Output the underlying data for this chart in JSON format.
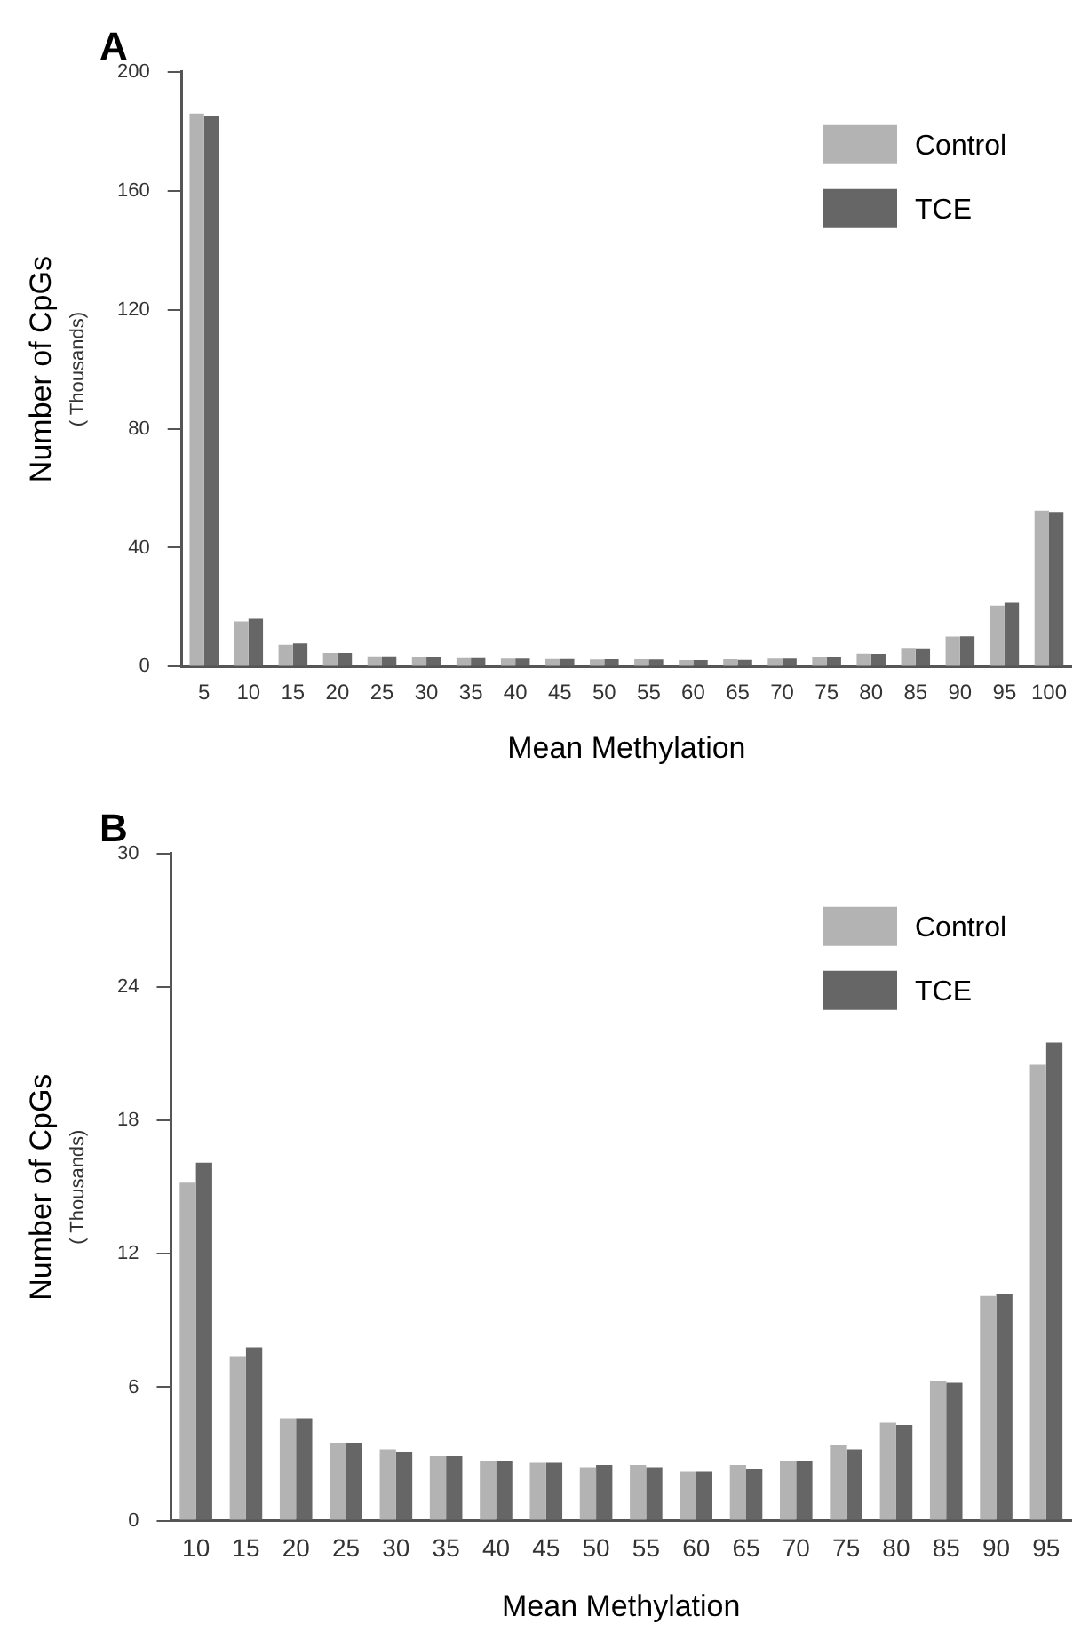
{
  "chart_data": [
    {
      "type": "bar",
      "title": "A",
      "xlabel": "Mean Methylation",
      "ylabel": "Number of CpGs",
      "annotations": [
        "( Thousands)"
      ],
      "categories": [
        "5",
        "10",
        "15",
        "20",
        "25",
        "30",
        "35",
        "40",
        "45",
        "50",
        "55",
        "60",
        "65",
        "70",
        "75",
        "80",
        "85",
        "90",
        "95",
        "100"
      ],
      "series": [
        {
          "name": "Control",
          "color": "#b3b3b3",
          "values": [
            186,
            15.2,
            7.4,
            4.6,
            3.5,
            3.2,
            2.9,
            2.7,
            2.6,
            2.4,
            2.5,
            2.2,
            2.5,
            2.7,
            3.4,
            4.4,
            6.3,
            10.1,
            20.5,
            52.5
          ]
        },
        {
          "name": "TCE",
          "color": "#666666",
          "values": [
            185,
            16.1,
            7.8,
            4.6,
            3.5,
            3.1,
            2.9,
            2.7,
            2.6,
            2.5,
            2.4,
            2.2,
            2.3,
            2.7,
            3.2,
            4.3,
            6.2,
            10.2,
            21.5,
            52
          ]
        }
      ],
      "ylim": [
        0,
        200
      ],
      "yticks": [
        0,
        40,
        80,
        120,
        160,
        200
      ],
      "grid": false,
      "legend": "top right"
    },
    {
      "type": "bar",
      "title": "B",
      "xlabel": "Mean Methylation",
      "ylabel": "Number of CpGs",
      "annotations": [
        "( Thousands)"
      ],
      "categories": [
        "10",
        "15",
        "20",
        "25",
        "30",
        "35",
        "40",
        "45",
        "50",
        "55",
        "60",
        "65",
        "70",
        "75",
        "80",
        "85",
        "90",
        "95"
      ],
      "series": [
        {
          "name": "Control",
          "color": "#b3b3b3",
          "values": [
            15.2,
            7.4,
            4.6,
            3.5,
            3.2,
            2.9,
            2.7,
            2.6,
            2.4,
            2.5,
            2.2,
            2.5,
            2.7,
            3.4,
            4.4,
            6.3,
            10.1,
            20.5
          ]
        },
        {
          "name": "TCE",
          "color": "#666666",
          "values": [
            16.1,
            7.8,
            4.6,
            3.5,
            3.1,
            2.9,
            2.7,
            2.6,
            2.5,
            2.4,
            2.2,
            2.3,
            2.7,
            3.2,
            4.3,
            6.2,
            10.2,
            21.5
          ]
        }
      ],
      "ylim": [
        0,
        30
      ],
      "yticks": [
        0,
        6,
        12,
        18,
        24,
        30
      ],
      "grid": false,
      "legend": "top right"
    }
  ]
}
